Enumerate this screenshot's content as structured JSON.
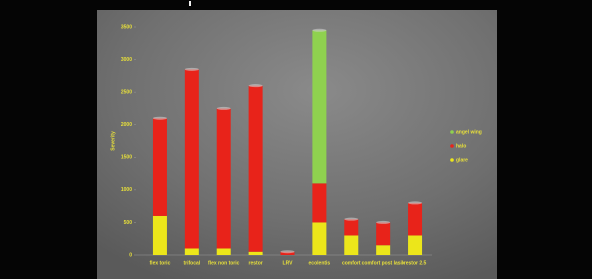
{
  "chart_data": {
    "type": "bar",
    "stacked": true,
    "y_label": "Severity",
    "categories": [
      "flex toric",
      "trifocal",
      "flex non toric",
      "restor",
      "LRV",
      "ecolentis",
      "comfort",
      "comfort post lasik",
      "restor 2.5"
    ],
    "series": [
      {
        "name": "glare",
        "color": "#ece61a",
        "values": [
          600,
          100,
          100,
          50,
          0,
          500,
          300,
          150,
          300
        ]
      },
      {
        "name": "halo",
        "color": "#e8231a",
        "values": [
          1500,
          2750,
          2150,
          2550,
          50,
          600,
          250,
          350,
          500
        ]
      },
      {
        "name": "angel wing",
        "color": "#8fd14f",
        "values": [
          0,
          0,
          0,
          0,
          0,
          2350,
          0,
          0,
          0
        ]
      }
    ],
    "ylim": [
      0,
      3500
    ],
    "yticks": [
      0,
      500,
      1000,
      1500,
      2000,
      2500,
      3000,
      3500
    ],
    "legend": "right"
  }
}
